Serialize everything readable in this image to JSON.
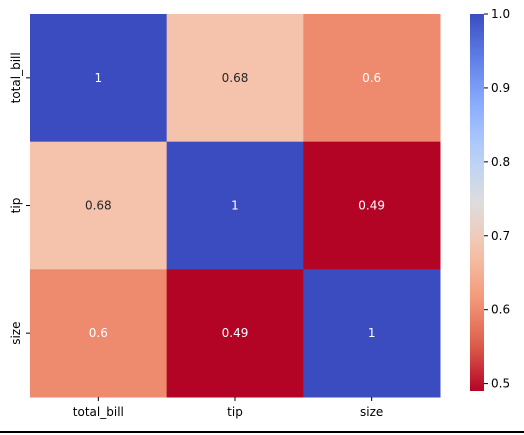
{
  "chart_data": {
    "type": "heatmap",
    "x_categories": [
      "total_bill",
      "tip",
      "size"
    ],
    "y_categories": [
      "total_bill",
      "tip",
      "size"
    ],
    "values": [
      [
        1,
        0.68,
        0.6
      ],
      [
        0.68,
        1,
        0.49
      ],
      [
        0.6,
        0.49,
        1
      ]
    ],
    "annotations": [
      [
        "1",
        "0.68",
        "0.6"
      ],
      [
        "0.68",
        "1",
        "0.49"
      ],
      [
        "0.6",
        "0.49",
        "1"
      ]
    ],
    "colormap": "coolwarm_r",
    "vmin": 0.49,
    "vmax": 1.0,
    "colorbar": {
      "ticks": [
        0.5,
        0.6,
        0.7,
        0.8,
        0.9,
        1.0
      ],
      "tick_labels": [
        "0.5",
        "0.6",
        "0.7",
        "0.8",
        "0.9",
        "1.0"
      ],
      "placement": "right"
    },
    "title": "",
    "xlabel": "",
    "ylabel": "",
    "grid": false
  },
  "colors": {
    "high": "#3b4cc0",
    "low": "#b40426",
    "light_text": "#ffffff",
    "dark_text": "#262626"
  }
}
